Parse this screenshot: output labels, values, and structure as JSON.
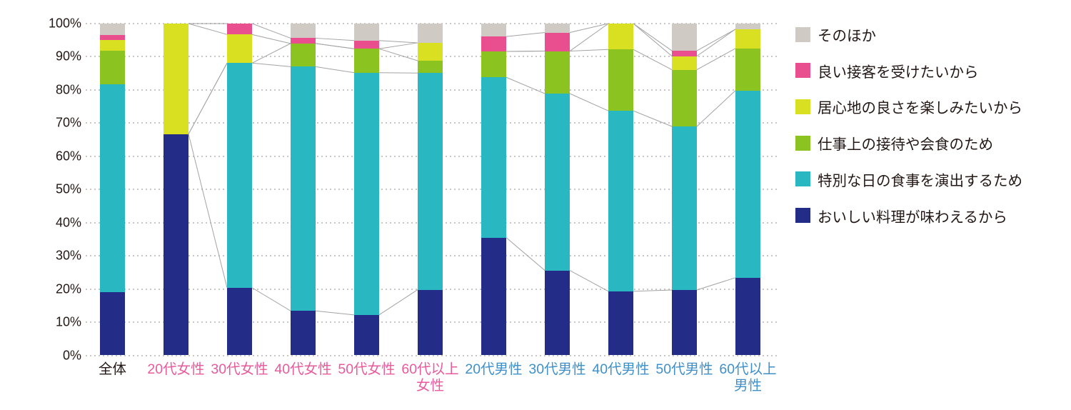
{
  "chart_data": {
    "type": "bar",
    "subtype": "100-percent-stacked-column",
    "title": "",
    "xlabel": "",
    "ylabel": "",
    "ylim": [
      0,
      100
    ],
    "y_ticks": [
      "0%",
      "10%",
      "20%",
      "30%",
      "40%",
      "50%",
      "60%",
      "70%",
      "80%",
      "90%",
      "100%"
    ],
    "grid": "horizontal-dotted",
    "legend_position": "right",
    "categories": [
      {
        "lines": [
          "全体"
        ],
        "color_group": "all"
      },
      {
        "lines": [
          "20代女性"
        ],
        "color_group": "female"
      },
      {
        "lines": [
          "30代女性"
        ],
        "color_group": "female"
      },
      {
        "lines": [
          "40代女性"
        ],
        "color_group": "female"
      },
      {
        "lines": [
          "50代女性"
        ],
        "color_group": "female"
      },
      {
        "lines": [
          "60代以上",
          "女性"
        ],
        "color_group": "female"
      },
      {
        "lines": [
          "20代男性"
        ],
        "color_group": "male"
      },
      {
        "lines": [
          "30代男性"
        ],
        "color_group": "male"
      },
      {
        "lines": [
          "40代男性"
        ],
        "color_group": "male"
      },
      {
        "lines": [
          "50代男性"
        ],
        "color_group": "male"
      },
      {
        "lines": [
          "60代以上",
          "男性"
        ],
        "color_group": "male"
      }
    ],
    "series": [
      {
        "name": "おいしい料理が味わえるから",
        "color": "#232d87",
        "values": [
          19.1,
          66.7,
          20.4,
          13.4,
          12.2,
          19.8,
          35.5,
          25.6,
          19.3,
          19.7,
          23.4
        ]
      },
      {
        "name": "特別な日の食事を演出するため",
        "color": "#29b8c1",
        "values": [
          62.5,
          0,
          67.7,
          73.6,
          73.0,
          65.3,
          48.3,
          53.3,
          54.4,
          49.3,
          56.4
        ]
      },
      {
        "name": "仕事上の接待や会食のため",
        "color": "#8bc321",
        "values": [
          10.3,
          0,
          0,
          7.0,
          7.2,
          3.7,
          7.8,
          12.8,
          18.5,
          17.1,
          12.7
        ]
      },
      {
        "name": "居心地の良さを楽しみたいから",
        "color": "#d9e021",
        "values": [
          3.2,
          33.3,
          8.6,
          0,
          0,
          5.4,
          0,
          0,
          7.8,
          4.1,
          5.8
        ]
      },
      {
        "name": "良い接客を受けたいから",
        "color": "#e94e8e",
        "values": [
          1.4,
          0,
          3.3,
          1.6,
          2.5,
          0,
          4.5,
          5.6,
          0,
          1.6,
          0
        ]
      },
      {
        "name": "そのほか",
        "color": "#d0cac5",
        "values": [
          3.5,
          0,
          0,
          4.4,
          5.1,
          5.8,
          3.9,
          2.7,
          0,
          8.2,
          1.7
        ]
      }
    ],
    "legend_top_to_bottom": [
      "そのほか",
      "良い接客を受けたいから",
      "居心地の良さを楽しみたいから",
      "仕事上の接待や会食のため",
      "特別な日の食事を演出するため",
      "おいしい料理が味わえるから"
    ],
    "series_connector_line_groups": [
      [
        1,
        5
      ],
      [
        6,
        10
      ]
    ],
    "colors": {
      "category_label_all": "#231815",
      "category_label_female": "#e85a9b",
      "category_label_male": "#3f90c9",
      "axis_text": "#231815",
      "gridline": "#c9c6c3",
      "connector_line": "#a3a3a3",
      "background": "#ffffff"
    }
  }
}
